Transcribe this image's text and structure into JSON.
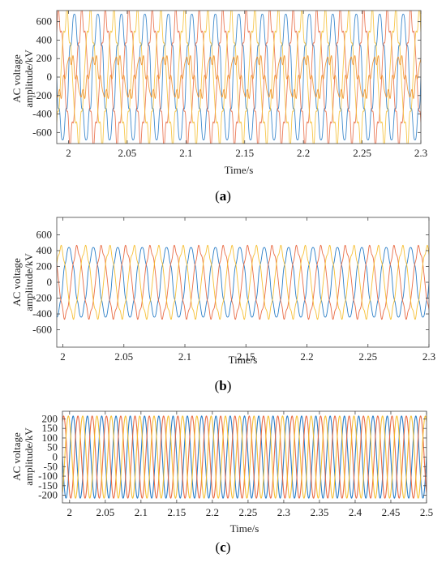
{
  "chart_data": [
    {
      "panel_label": "(a)",
      "panel_letter": "a",
      "type": "line",
      "title": "",
      "xlabel": "Time/s",
      "ylabel": [
        "AC voltage",
        "amplitude/kV"
      ],
      "xlim": [
        1.99,
        2.3
      ],
      "ylim": [
        -720,
        720
      ],
      "xticks": [
        "2",
        "2.05",
        "2.1",
        "2.15",
        "2.2",
        "2.25",
        "2.3"
      ],
      "xtick_values": [
        2,
        2.05,
        2.1,
        2.15,
        2.2,
        2.25,
        2.3
      ],
      "yticks": [
        "600",
        "400",
        "200",
        "0",
        "-200",
        "-400",
        "-600"
      ],
      "ytick_values": [
        600,
        400,
        200,
        0,
        -200,
        -400,
        -600
      ],
      "grid": false,
      "frequency_hz": 50,
      "series": [
        {
          "color": "#1f77c4",
          "phase_deg": 0,
          "amplitude": 650,
          "harmonic": 0.12
        },
        {
          "color": "#e8643c",
          "phase_deg": -120,
          "amplitude": 650,
          "harmonic": 0.12
        },
        {
          "color": "#f5bd2b",
          "phase_deg": 120,
          "amplitude": 650,
          "harmonic": 0.12
        },
        {
          "color": "#f08a1c",
          "phase_deg": 60,
          "amplitude": 200,
          "harmonic": 0.25
        }
      ]
    },
    {
      "panel_label": "(b)",
      "panel_letter": "b",
      "type": "line",
      "title": "",
      "xlabel": "Time/s",
      "ylabel": [
        "AC voltage",
        "amplitude/kV"
      ],
      "xlim": [
        1.995,
        2.3
      ],
      "ylim": [
        -820,
        820
      ],
      "xticks": [
        "2",
        "2.05",
        "2.1",
        "2.15",
        "2.2",
        "2.25",
        "2.3"
      ],
      "xtick_values": [
        2,
        2.05,
        2.1,
        2.15,
        2.2,
        2.25,
        2.3
      ],
      "yticks": [
        "600",
        "400",
        "200",
        "0",
        "-200",
        "-400",
        "-600"
      ],
      "ytick_values": [
        600,
        400,
        200,
        0,
        -200,
        -400,
        -600
      ],
      "grid": false,
      "frequency_hz": 50,
      "series": [
        {
          "color": "#1f77c4",
          "phase_deg": 0,
          "amplitude": 430,
          "harmonic": 0.06
        },
        {
          "color": "#e8643c",
          "phase_deg": -120,
          "amplitude": 430,
          "harmonic": 0.06
        },
        {
          "color": "#f5bd2b",
          "phase_deg": 120,
          "amplitude": 430,
          "harmonic": 0.06
        }
      ]
    },
    {
      "panel_label": "(c)",
      "panel_letter": "c",
      "type": "line",
      "title": "",
      "xlabel": "Time/s",
      "ylabel": [
        "AC voltage",
        "amplitude/kV"
      ],
      "xlim": [
        1.99,
        2.5
      ],
      "ylim": [
        -240,
        240
      ],
      "xticks": [
        "2",
        "2.05",
        "2.1",
        "2.15",
        "2.2",
        "2.25",
        "2.3",
        "2.35",
        "2.4",
        "2.45",
        "2.5"
      ],
      "xtick_values": [
        2,
        2.05,
        2.1,
        2.15,
        2.2,
        2.25,
        2.3,
        2.35,
        2.4,
        2.45,
        2.5
      ],
      "yticks": [
        "200",
        "150",
        "100",
        "50",
        "0",
        "-50",
        "-100",
        "-150",
        "-200"
      ],
      "ytick_values": [
        200,
        150,
        100,
        50,
        0,
        -50,
        -100,
        -150,
        -200
      ],
      "grid": false,
      "frequency_hz": 50,
      "series": [
        {
          "color": "#1f77c4",
          "phase_deg": 0,
          "amplitude": 215,
          "harmonic": 0
        },
        {
          "color": "#e8643c",
          "phase_deg": -120,
          "amplitude": 215,
          "harmonic": 0
        },
        {
          "color": "#f5bd2b",
          "phase_deg": 120,
          "amplitude": 215,
          "harmonic": 0
        }
      ]
    }
  ]
}
